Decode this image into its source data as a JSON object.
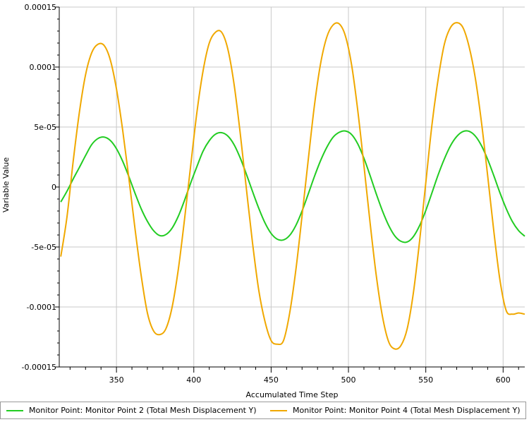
{
  "chart_data": {
    "type": "line",
    "xlabel": "Accumulated Time Step",
    "ylabel": "Variable Value",
    "xlim": [
      313,
      614
    ],
    "ylim": [
      -0.00015,
      0.00015
    ],
    "x_ticks": [
      350,
      400,
      450,
      500,
      550,
      600
    ],
    "x_tick_labels": [
      "350",
      "400",
      "450",
      "500",
      "550",
      "600"
    ],
    "y_ticks": [
      0.00015,
      0.0001,
      5e-05,
      0,
      -5e-05,
      -0.0001,
      -0.00015
    ],
    "y_tick_labels": [
      "0.00015",
      "0.0001",
      "5e-05",
      "0",
      "-5e-05",
      "-0.0001",
      "-0.00015"
    ],
    "grid": true,
    "legend_position": "bottom",
    "series": [
      {
        "name": "Monitor Point: Monitor Point 2 (Total Mesh Displacement Y)",
        "color": "#22cc22",
        "x": [
          314,
          318,
          322,
          326,
          330,
          334,
          338,
          342,
          346,
          350,
          354,
          358,
          362,
          366,
          370,
          374,
          378,
          382,
          386,
          390,
          394,
          398,
          402,
          406,
          410,
          414,
          418,
          422,
          426,
          430,
          434,
          438,
          442,
          446,
          450,
          454,
          458,
          462,
          466,
          470,
          474,
          478,
          482,
          486,
          490,
          494,
          498,
          502,
          506,
          510,
          514,
          518,
          522,
          526,
          530,
          534,
          538,
          542,
          546,
          550,
          554,
          558,
          562,
          566,
          570,
          574,
          578,
          582,
          586,
          590,
          594,
          598,
          602,
          606,
          610,
          614
        ],
        "y": [
          -1.25e-05,
          -3.5e-06,
          6.7e-06,
          1.63e-05,
          2.62e-05,
          3.54e-05,
          4.04e-05,
          4.16e-05,
          3.88e-05,
          3.19e-05,
          2.15e-05,
          8.7e-06,
          -5.2e-06,
          -1.82e-05,
          -2.86e-05,
          -3.64e-05,
          -4.05e-05,
          -3.96e-05,
          -3.42e-05,
          -2.43e-05,
          -1.11e-05,
          3.4e-06,
          1.7e-05,
          2.99e-05,
          3.86e-05,
          4.4e-05,
          4.53e-05,
          4.25e-05,
          3.54e-05,
          2.43e-05,
          1.07e-05,
          -3.8e-06,
          -1.77e-05,
          -2.98e-05,
          -3.87e-05,
          -4.35e-05,
          -4.41e-05,
          -4.03e-05,
          -3.2e-05,
          -2e-05,
          -5.8e-06,
          8.8e-06,
          2.21e-05,
          3.31e-05,
          4.14e-05,
          4.56e-05,
          4.67e-05,
          4.38e-05,
          3.6e-05,
          2.4e-05,
          9.5e-06,
          -5.8e-06,
          -2e-05,
          -3.2e-05,
          -4.08e-05,
          -4.53e-05,
          -4.58e-05,
          -4.13e-05,
          -3.22e-05,
          -1.96e-05,
          -4.8e-06,
          1.02e-05,
          2.34e-05,
          3.45e-05,
          4.21e-05,
          4.62e-05,
          4.64e-05,
          4.25e-05,
          3.45e-05,
          2.3e-05,
          9.4e-06,
          -5e-06,
          -1.8e-05,
          -2.88e-05,
          -3.63e-05,
          -4.1e-05
        ]
      },
      {
        "name": "Monitor Point: Monitor Point 4 (Total Mesh Displacement Y)",
        "color": "#f0a800",
        "x": [
          314,
          318,
          322,
          326,
          330,
          334,
          338,
          342,
          346,
          350,
          354,
          358,
          362,
          366,
          370,
          374,
          378,
          382,
          386,
          390,
          394,
          398,
          402,
          406,
          410,
          414,
          418,
          422,
          426,
          430,
          434,
          438,
          442,
          446,
          450,
          454,
          458,
          462,
          466,
          470,
          474,
          478,
          482,
          486,
          490,
          494,
          498,
          502,
          506,
          510,
          514,
          518,
          522,
          526,
          530,
          534,
          538,
          542,
          546,
          550,
          554,
          558,
          562,
          566,
          570,
          574,
          578,
          582,
          586,
          590,
          594,
          598,
          602,
          606,
          610,
          614
        ],
        "y": [
          -5.8e-05,
          -2.49e-05,
          2.13e-05,
          6.21e-05,
          9.35e-05,
          0.000112,
          0.000119,
          0.000118,
          0.000106,
          8.17e-05,
          4.75e-05,
          7.4e-06,
          -3.49e-05,
          -7.4e-05,
          -0.000105,
          -0.00012,
          -0.000123,
          -0.000118,
          -0.0001,
          -6.85e-05,
          -2.7e-05,
          1.8e-05,
          6.21e-05,
          9.69e-05,
          0.00012,
          0.000129,
          0.000129,
          0.000115,
          8.6e-05,
          4.5e-05,
          -1.5e-06,
          -4.7e-05,
          -8.6e-05,
          -0.000112,
          -0.000128,
          -0.000131,
          -0.000128,
          -0.000105,
          -6.9e-05,
          -2.4e-05,
          2.27e-05,
          6.8e-05,
          0.000103,
          0.000125,
          0.000135,
          0.000136,
          0.000126,
          0.000102,
          6.4e-05,
          1.8e-05,
          -3e-05,
          -7.4e-05,
          -0.000108,
          -0.000129,
          -0.000135,
          -0.000132,
          -0.000118,
          -8.8e-05,
          -4.5e-05,
          3.5e-06,
          5.2e-05,
          9e-05,
          0.000119,
          0.000133,
          0.000137,
          0.000133,
          0.000117,
          9.1e-05,
          5.4e-05,
          9.5e-06,
          -3.7e-05,
          -7.8e-05,
          -0.000103,
          -0.000106,
          -0.000105,
          -0.000106
        ]
      }
    ]
  }
}
